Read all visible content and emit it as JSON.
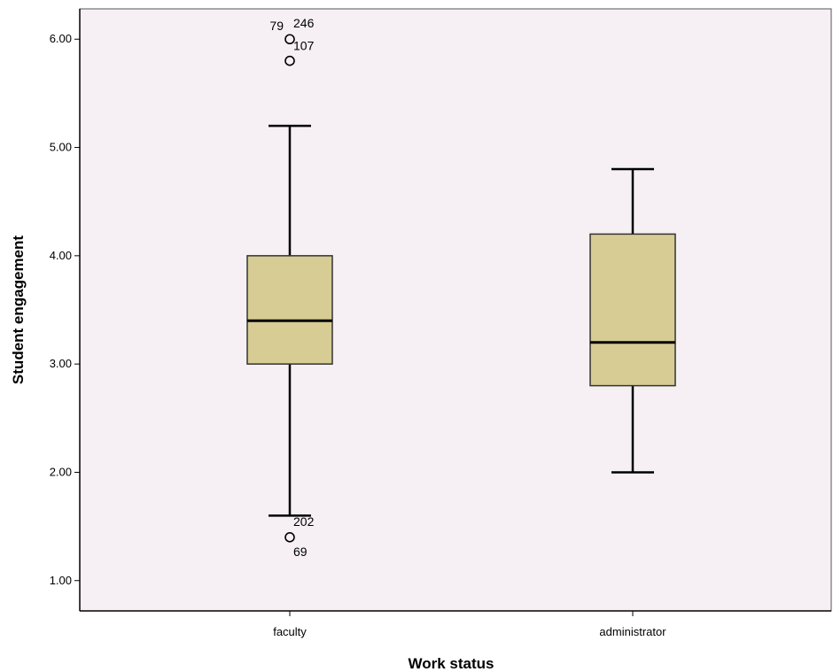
{
  "chart_data": {
    "type": "boxplot",
    "title": "",
    "xlabel": "Work status",
    "ylabel": "Student engagement",
    "ylim": [
      0.72,
      6.28
    ],
    "yticks": [
      1,
      2,
      3,
      4,
      5,
      6
    ],
    "ytick_labels": [
      "1.00",
      "2.00",
      "3.00",
      "4.00",
      "5.00",
      "6.00"
    ],
    "grid": false,
    "colors": {
      "plot_background": "#f6f0f4",
      "box_fill": "#d6cc94",
      "stroke": "#000000"
    },
    "categories": [
      "faculty",
      "administrator"
    ],
    "boxes": [
      {
        "category": "faculty",
        "whisker_low": 1.6,
        "q1": 3.0,
        "median": 3.4,
        "q3": 4.0,
        "whisker_high": 5.2,
        "outliers": [
          {
            "value": 6.0,
            "labels": [
              "79",
              "246"
            ]
          },
          {
            "value": 5.8,
            "labels": [
              "107"
            ]
          },
          {
            "value": 1.4,
            "labels": [
              "202",
              "69"
            ]
          }
        ]
      },
      {
        "category": "administrator",
        "whisker_low": 2.0,
        "q1": 2.8,
        "median": 3.2,
        "q3": 4.2,
        "whisker_high": 4.8,
        "outliers": []
      }
    ]
  }
}
